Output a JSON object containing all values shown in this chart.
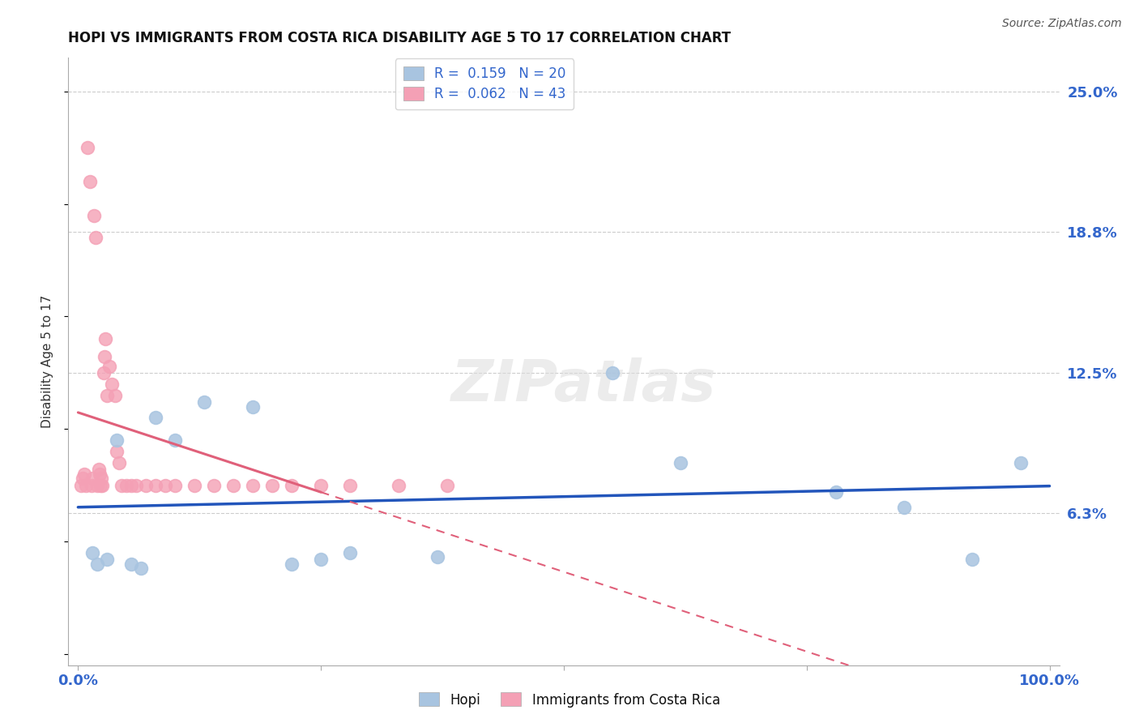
{
  "title": "HOPI VS IMMIGRANTS FROM COSTA RICA DISABILITY AGE 5 TO 17 CORRELATION CHART",
  "source": "Source: ZipAtlas.com",
  "ylabel": "Disability Age 5 to 17",
  "xlim": [
    0,
    100
  ],
  "ylim": [
    0,
    25
  ],
  "yticks": [
    0,
    6.25,
    12.5,
    18.75,
    25.0
  ],
  "ytick_labels": [
    "",
    "6.3%",
    "12.5%",
    "18.8%",
    "25.0%"
  ],
  "xtick_labels": [
    "0.0%",
    "",
    "",
    "",
    "100.0%"
  ],
  "hopi_R": 0.159,
  "hopi_N": 20,
  "cr_R": 0.062,
  "cr_N": 43,
  "hopi_color": "#a8c4e0",
  "cr_color": "#f4a0b5",
  "hopi_line_color": "#2255bb",
  "cr_line_color": "#e0607a",
  "watermark_text": "ZIPatlas",
  "hopi_x": [
    1.5,
    2.0,
    3.0,
    4.0,
    5.5,
    6.5,
    8.0,
    10.0,
    13.0,
    18.0,
    22.0,
    25.0,
    28.0,
    37.0,
    55.0,
    62.0,
    78.0,
    85.0,
    92.0,
    97.0
  ],
  "hopi_y": [
    4.5,
    4.0,
    4.2,
    9.5,
    4.0,
    3.8,
    10.5,
    9.5,
    11.2,
    11.0,
    4.0,
    4.2,
    4.5,
    4.3,
    12.5,
    8.5,
    7.2,
    6.5,
    4.2,
    8.5
  ],
  "cr_x": [
    0.3,
    0.5,
    0.6,
    0.8,
    1.0,
    1.2,
    1.4,
    1.5,
    1.6,
    1.8,
    2.0,
    2.1,
    2.2,
    2.3,
    2.4,
    2.5,
    2.6,
    2.7,
    2.8,
    3.0,
    3.2,
    3.5,
    3.8,
    4.0,
    4.2,
    4.5,
    5.0,
    5.5,
    6.0,
    7.0,
    8.0,
    9.0,
    10.0,
    12.0,
    14.0,
    16.0,
    18.0,
    20.0,
    22.0,
    25.0,
    28.0,
    33.0,
    38.0
  ],
  "cr_y": [
    7.5,
    7.8,
    8.0,
    7.5,
    22.5,
    21.0,
    7.5,
    7.8,
    19.5,
    18.5,
    7.5,
    8.2,
    8.0,
    7.5,
    7.8,
    7.5,
    12.5,
    13.2,
    14.0,
    11.5,
    12.8,
    12.0,
    11.5,
    9.0,
    8.5,
    7.5,
    7.5,
    7.5,
    7.5,
    7.5,
    7.5,
    7.5,
    7.5,
    7.5,
    7.5,
    7.5,
    7.5,
    7.5,
    7.5,
    7.5,
    7.5,
    7.5,
    7.5
  ]
}
